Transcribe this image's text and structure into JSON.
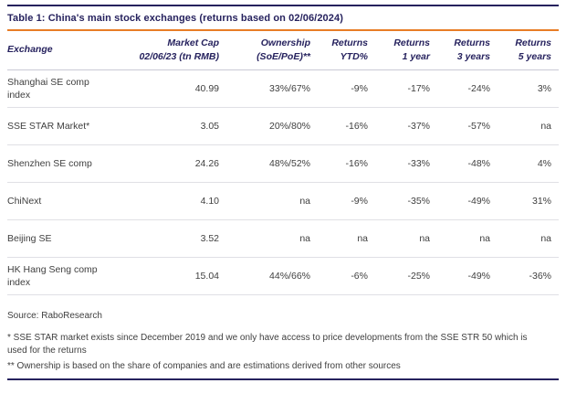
{
  "colors": {
    "navy": "#26225E",
    "orange": "#E87D26",
    "body_text": "#3F3F3F",
    "row_line": "#E0E0E5",
    "header_line": "#C9C9D5"
  },
  "chart_data": {
    "type": "table",
    "title": "Table 1: China's main stock exchanges (returns based on 02/06/2024)",
    "columns": [
      {
        "line1": "Exchange",
        "line2": ""
      },
      {
        "line1": "Market Cap",
        "line2": "02/06/23 (tn RMB)"
      },
      {
        "line1": "Ownership",
        "line2": "(SoE/PoE)**"
      },
      {
        "line1": "Returns",
        "line2": "YTD%"
      },
      {
        "line1": "Returns",
        "line2": "1 year"
      },
      {
        "line1": "Returns",
        "line2": "3 years"
      },
      {
        "line1": "Returns",
        "line2": "5 years"
      }
    ],
    "rows": [
      [
        "Shanghai SE comp\nindex",
        "40.99",
        "33%/67%",
        "-9%",
        "-17%",
        "-24%",
        "3%"
      ],
      [
        "SSE STAR Market*",
        "3.05",
        "20%/80%",
        "-16%",
        "-37%",
        "-57%",
        "na"
      ],
      [
        "Shenzhen SE comp",
        "24.26",
        "48%/52%",
        "-16%",
        "-33%",
        "-48%",
        "4%"
      ],
      [
        "ChiNext",
        "4.10",
        "na",
        "-9%",
        "-35%",
        "-49%",
        "31%"
      ],
      [
        "Beijing SE",
        "3.52",
        "na",
        "na",
        "na",
        "na",
        "na"
      ],
      [
        "HK Hang Seng comp\nindex",
        "15.04",
        "44%/66%",
        "-6%",
        "-25%",
        "-49%",
        "-36%"
      ]
    ]
  },
  "footer": {
    "source": "Source: RaboResearch",
    "footnotes": [
      "* SSE STAR market exists since December 2019 and we only have access to price developments from the SSE STR 50 which is used for the returns",
      "** Ownership is based on the share of companies and are estimations derived from other sources"
    ]
  }
}
